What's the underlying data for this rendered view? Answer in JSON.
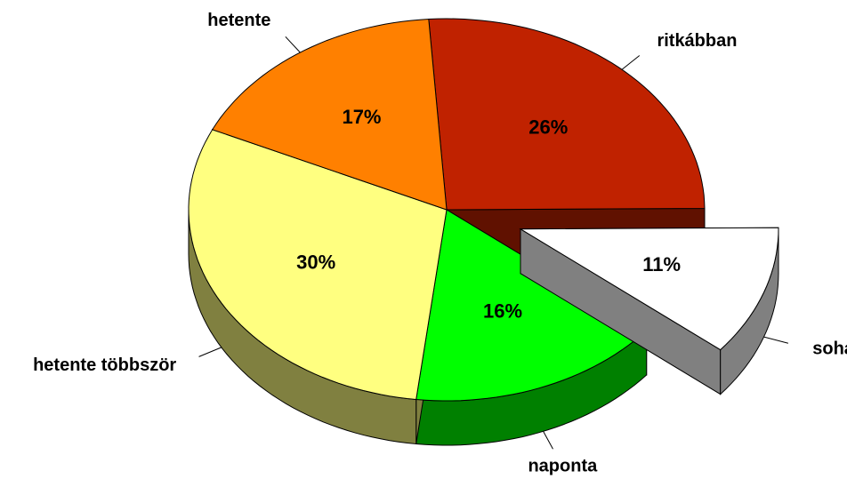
{
  "chart_data": {
    "type": "pie",
    "categories": [
      "ritkábban",
      "soha",
      "naponta",
      "hetente többször",
      "hetente"
    ],
    "values": [
      26,
      11,
      16,
      30,
      17
    ],
    "value_labels": [
      "26%",
      "11%",
      "16%",
      "30%",
      "17%"
    ],
    "colors": [
      "#c02200",
      "#ffffff",
      "#00ff00",
      "#ffff80",
      "#ff8000"
    ],
    "explode": [
      false,
      true,
      false,
      false,
      false
    ],
    "three_d": true
  }
}
